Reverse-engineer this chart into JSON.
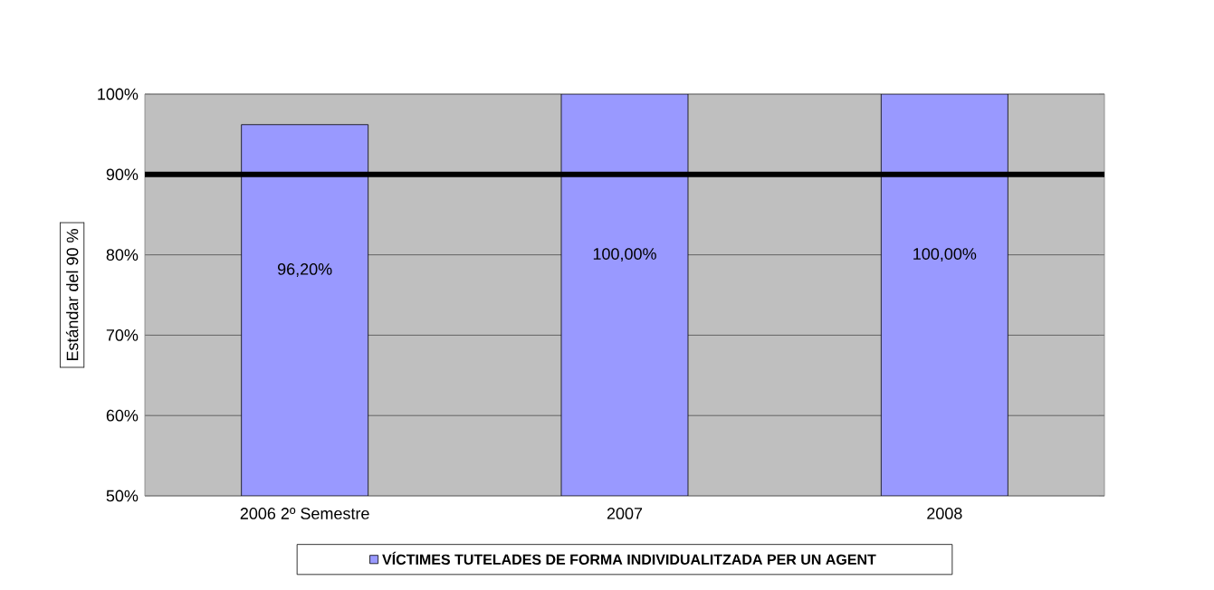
{
  "chart_data": {
    "type": "bar",
    "categories": [
      "2006 2º Semestre",
      "2007",
      "2008"
    ],
    "series": [
      {
        "name": "VÍCTIMES TUTELADES DE FORMA INDIVIDUALITZADA PER UN AGENT",
        "color": "#9999ff",
        "values": [
          96.2,
          100,
          100
        ],
        "value_labels": [
          "96,20%",
          "100,00%",
          "100,00%"
        ]
      }
    ],
    "ylabel": "Estándar del 90 %",
    "ylim": [
      50,
      100
    ],
    "yticks": [
      {
        "value": 50,
        "label": "50%"
      },
      {
        "value": 60,
        "label": "60%"
      },
      {
        "value": 70,
        "label": "70%"
      },
      {
        "value": 80,
        "label": "80%"
      },
      {
        "value": 90,
        "label": "90%"
      },
      {
        "value": 100,
        "label": "100%"
      }
    ],
    "ref_lines": [
      {
        "axis": "y",
        "value": 90,
        "color": "#000000"
      }
    ],
    "grid": "y",
    "legend": "bottom"
  }
}
